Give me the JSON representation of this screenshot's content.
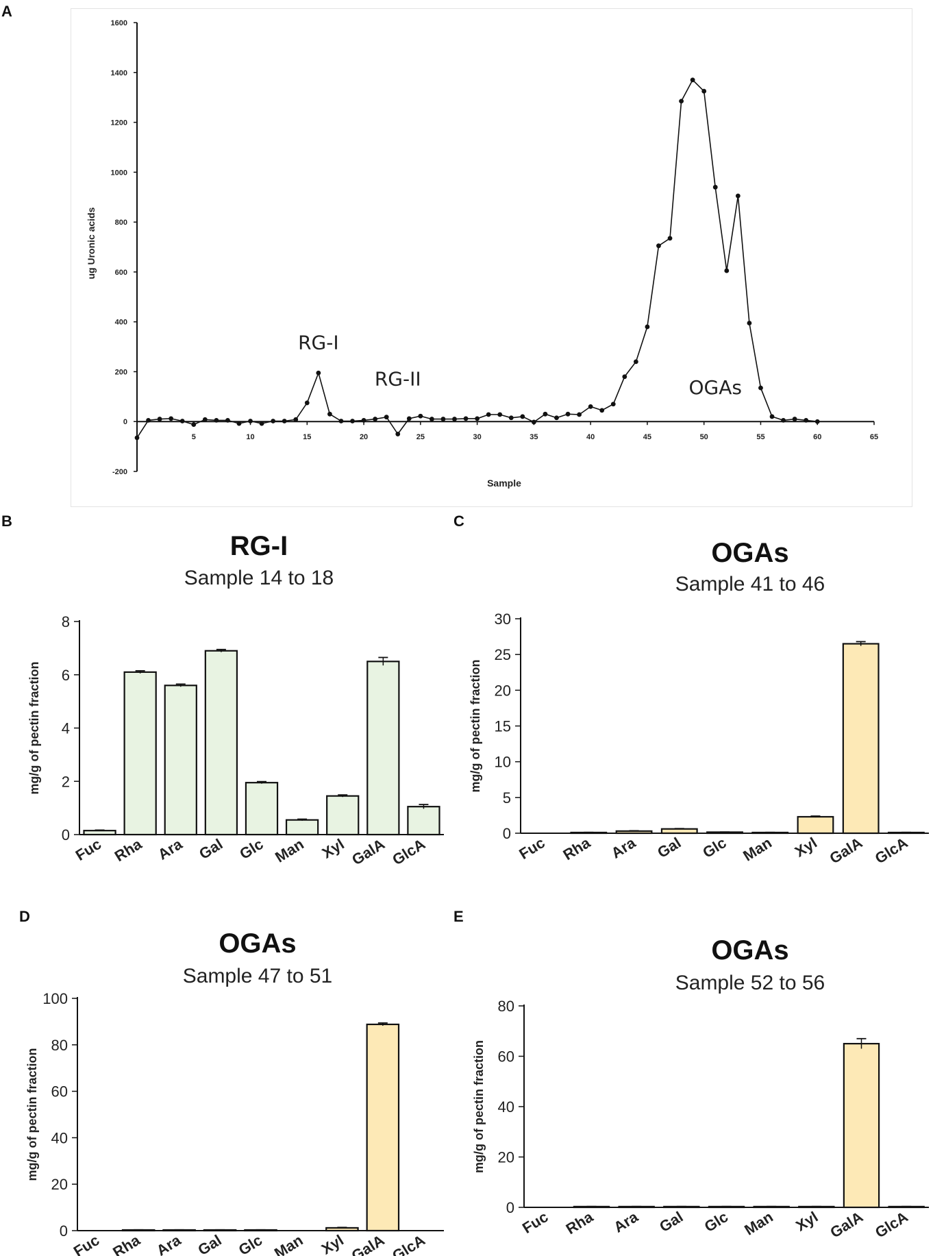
{
  "panels": {
    "a": "A",
    "b": "B",
    "c": "C",
    "d": "D",
    "e": "E"
  },
  "colors": {
    "line": "#111111",
    "green_fill": "#e8f3e2",
    "yellow_fill": "#fde9b6",
    "bar_stroke": "#111111"
  },
  "chart_data": [
    {
      "type": "line",
      "xlabel": "Sample",
      "ylabel": "ug Uronic acids",
      "xlim": [
        0,
        65
      ],
      "ylim": [
        -200,
        1600
      ],
      "xticks": [
        5,
        10,
        15,
        20,
        25,
        30,
        35,
        40,
        45,
        50,
        55,
        60,
        65
      ],
      "yticks": [
        -200,
        0,
        200,
        400,
        600,
        800,
        1000,
        1200,
        1400,
        1600
      ],
      "annotations": [
        {
          "text": "RG-I",
          "x": 16,
          "y": 290
        },
        {
          "text": "RG-II",
          "x": 23,
          "y": 145
        },
        {
          "text": "OGAs",
          "x": 51,
          "y": 110
        }
      ],
      "x": [
        0,
        1,
        2,
        3,
        4,
        5,
        6,
        7,
        8,
        9,
        10,
        11,
        12,
        13,
        14,
        15,
        16,
        17,
        18,
        19,
        20,
        21,
        22,
        23,
        24,
        25,
        26,
        27,
        28,
        29,
        30,
        31,
        32,
        33,
        34,
        35,
        36,
        37,
        38,
        39,
        40,
        41,
        42,
        43,
        44,
        45,
        46,
        47,
        48,
        49,
        50,
        51,
        52,
        53,
        54,
        55,
        56,
        57,
        58,
        59,
        60
      ],
      "y": [
        -65,
        5,
        10,
        12,
        2,
        -12,
        8,
        5,
        5,
        -8,
        2,
        -8,
        2,
        2,
        8,
        75,
        195,
        30,
        2,
        2,
        5,
        10,
        18,
        -50,
        12,
        22,
        10,
        10,
        10,
        12,
        12,
        28,
        28,
        15,
        20,
        -2,
        30,
        15,
        30,
        28,
        60,
        45,
        70,
        180,
        240,
        380,
        705,
        735,
        1285,
        1370,
        1325,
        940,
        605,
        905,
        395,
        135,
        20,
        5,
        10,
        5,
        0
      ]
    },
    {
      "type": "bar",
      "title": "RG-I",
      "subtitle": "Sample 14 to 18",
      "ylabel": "mg/g of pectin fraction",
      "ylim": [
        0,
        8
      ],
      "yticks": [
        0,
        2,
        4,
        6,
        8
      ],
      "categories": [
        "Fuc",
        "Rha",
        "Ara",
        "Gal",
        "Glc",
        "Man",
        "Xyl",
        "GalA",
        "GlcA"
      ],
      "values": [
        0.15,
        6.1,
        5.6,
        6.9,
        1.95,
        0.55,
        1.45,
        6.5,
        1.05
      ],
      "errors": [
        0.02,
        0.05,
        0.05,
        0.05,
        0.04,
        0.03,
        0.04,
        0.15,
        0.08
      ],
      "color": "#e8f3e2"
    },
    {
      "type": "bar",
      "title": "OGAs",
      "subtitle": "Sample 41 to 46",
      "ylabel": "mg/g of pectin fraction",
      "ylim": [
        0,
        30
      ],
      "yticks": [
        0,
        5,
        10,
        15,
        20,
        25,
        30
      ],
      "categories": [
        "Fuc",
        "Rha",
        "Ara",
        "Gal",
        "Glc",
        "Man",
        "Xyl",
        "GalA",
        "GlcA"
      ],
      "values": [
        0.0,
        0.1,
        0.3,
        0.6,
        0.15,
        0.1,
        2.3,
        26.5,
        0.1
      ],
      "errors": [
        0.0,
        0.02,
        0.05,
        0.05,
        0.02,
        0.02,
        0.1,
        0.3,
        0.02
      ],
      "color": "#fde9b6"
    },
    {
      "type": "bar",
      "title": "OGAs",
      "subtitle": "Sample 47 to 51",
      "ylabel": "mg/g of pectin fraction",
      "ylim": [
        0,
        100
      ],
      "yticks": [
        0,
        20,
        40,
        60,
        80,
        100
      ],
      "categories": [
        "Fuc",
        "Rha",
        "Ara",
        "Gal",
        "Glc",
        "Man",
        "Xyl",
        "GalA",
        "GlcA"
      ],
      "values": [
        0.0,
        0.3,
        0.3,
        0.3,
        0.3,
        0.0,
        1.2,
        88.8,
        0.0
      ],
      "errors": [
        0.0,
        0.05,
        0.05,
        0.05,
        0.05,
        0.0,
        0.2,
        0.6,
        0.0
      ],
      "color": "#fde9b6"
    },
    {
      "type": "bar",
      "title": "OGAs",
      "subtitle": "Sample 52 to 56",
      "ylabel": "mg/g of pectin  fraction",
      "ylim": [
        0,
        80
      ],
      "yticks": [
        0,
        20,
        40,
        60,
        80
      ],
      "categories": [
        "Fuc",
        "Rha",
        "Ara",
        "Gal",
        "Glc",
        "Man",
        "Xyl",
        "GalA",
        "GlcA"
      ],
      "values": [
        0.0,
        0.3,
        0.3,
        0.3,
        0.3,
        0.3,
        0.3,
        65.0,
        0.3
      ],
      "errors": [
        0.0,
        0.05,
        0.05,
        0.05,
        0.05,
        0.05,
        0.05,
        2.0,
        0.05
      ],
      "color": "#fde9b6"
    }
  ]
}
